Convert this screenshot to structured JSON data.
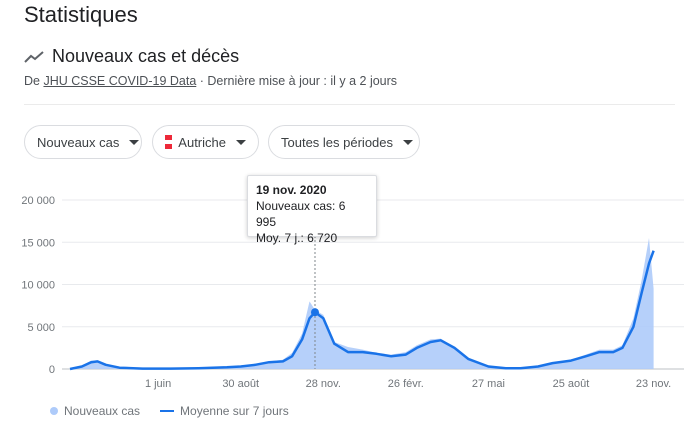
{
  "header": {
    "title": "Statistiques",
    "subtitle": "Nouveaux cas et décès",
    "source_prefix": "De ",
    "source_link": "JHU CSSE COVID-19 Data",
    "source_suffix": " · Dernière mise à jour : il y a 2 jours"
  },
  "filters": {
    "metric": "Nouveaux cas",
    "country": "Autriche",
    "period": "Toutes les périodes",
    "flag_colors": [
      "#ed2939",
      "#ffffff",
      "#ed2939"
    ]
  },
  "tooltip": {
    "date": "19 nov. 2020",
    "cases_label": "Nouveaux cas: 6 995",
    "avg_label": "Moy. 7 j.: 6 720"
  },
  "legend": {
    "bars": "Nouveaux cas",
    "line": "Moyenne sur 7 jours"
  },
  "colors": {
    "bars": "#aecbfa",
    "line": "#1a73e8",
    "grid": "#e8eaed"
  },
  "chart_data": {
    "type": "area",
    "y_ticks": [
      "0",
      "5 000",
      "10 000",
      "15 000",
      "20 000"
    ],
    "y_tick_values": [
      0,
      5000,
      10000,
      15000,
      20000
    ],
    "ylim": [
      0,
      20000
    ],
    "x_ticks": [
      "1 juin",
      "30 août",
      "28 nov.",
      "26 févr.",
      "27 mai",
      "25 août",
      "23 nov."
    ],
    "x_tick_dates": [
      "2020-06-01",
      "2020-08-30",
      "2020-11-28",
      "2021-02-26",
      "2021-05-27",
      "2021-08-25",
      "2021-11-23"
    ],
    "xlim": [
      "2020-02-26",
      "2021-11-30"
    ],
    "series": [
      {
        "name": "Moyenne sur 7 jours",
        "dates": [
          "2020-02-26",
          "2020-03-10",
          "2020-03-20",
          "2020-03-27",
          "2020-04-05",
          "2020-04-20",
          "2020-05-15",
          "2020-06-15",
          "2020-07-15",
          "2020-08-15",
          "2020-08-30",
          "2020-09-15",
          "2020-09-30",
          "2020-10-15",
          "2020-10-25",
          "2020-11-05",
          "2020-11-13",
          "2020-11-19",
          "2020-11-28",
          "2020-12-10",
          "2020-12-25",
          "2021-01-10",
          "2021-01-25",
          "2021-02-10",
          "2021-02-26",
          "2021-03-10",
          "2021-03-25",
          "2021-04-05",
          "2021-04-20",
          "2021-05-05",
          "2021-05-27",
          "2021-06-15",
          "2021-07-01",
          "2021-07-20",
          "2021-08-05",
          "2021-08-25",
          "2021-09-10",
          "2021-09-25",
          "2021-10-10",
          "2021-10-20",
          "2021-11-01",
          "2021-11-10",
          "2021-11-18",
          "2021-11-23"
        ],
        "values": [
          0,
          300,
          800,
          900,
          500,
          150,
          50,
          50,
          100,
          200,
          300,
          500,
          800,
          900,
          1500,
          3500,
          6000,
          6720,
          6000,
          3000,
          2000,
          2000,
          1800,
          1500,
          1700,
          2500,
          3200,
          3400,
          2500,
          1200,
          300,
          100,
          100,
          300,
          700,
          1000,
          1500,
          2000,
          2000,
          2500,
          5000,
          9000,
          12500,
          14000
        ]
      },
      {
        "name": "Nouveaux cas",
        "dates": [
          "2020-02-26",
          "2020-03-10",
          "2020-03-20",
          "2020-03-27",
          "2020-04-05",
          "2020-04-20",
          "2020-05-15",
          "2020-06-15",
          "2020-07-15",
          "2020-08-15",
          "2020-08-30",
          "2020-09-15",
          "2020-09-30",
          "2020-10-15",
          "2020-10-25",
          "2020-11-05",
          "2020-11-13",
          "2020-11-19",
          "2020-11-28",
          "2020-12-10",
          "2020-12-25",
          "2021-01-10",
          "2021-01-25",
          "2021-02-10",
          "2021-02-26",
          "2021-03-10",
          "2021-03-25",
          "2021-04-05",
          "2021-04-20",
          "2021-05-05",
          "2021-05-27",
          "2021-06-15",
          "2021-07-01",
          "2021-07-20",
          "2021-08-05",
          "2021-08-25",
          "2021-09-10",
          "2021-09-25",
          "2021-10-10",
          "2021-10-20",
          "2021-11-01",
          "2021-11-10",
          "2021-11-18",
          "2021-11-23"
        ],
        "values": [
          0,
          400,
          1000,
          1000,
          600,
          200,
          60,
          60,
          120,
          250,
          350,
          600,
          900,
          1100,
          1900,
          4200,
          8000,
          6995,
          6400,
          3200,
          2600,
          2300,
          1900,
          1700,
          2000,
          2800,
          3500,
          3600,
          2600,
          1300,
          350,
          120,
          120,
          350,
          800,
          1100,
          1700,
          2300,
          2300,
          2800,
          6000,
          10500,
          15500,
          9500
        ]
      }
    ],
    "highlight": {
      "date": "2020-11-19",
      "value": 6720
    }
  }
}
